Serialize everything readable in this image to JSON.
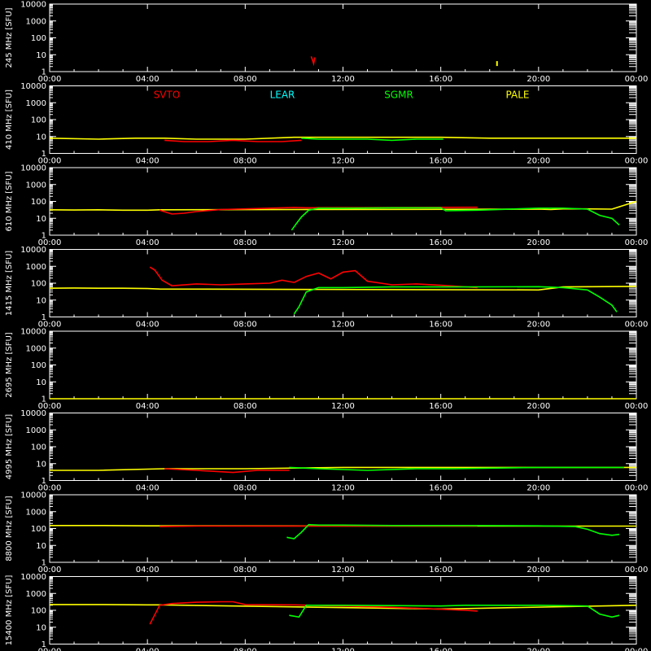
{
  "chart_data": {
    "type": "line",
    "title": "",
    "x_ticks": [
      "00:00",
      "04:00",
      "08:00",
      "12:00",
      "16:00",
      "20:00",
      "00:00"
    ],
    "y_ticks": [
      "1",
      "10",
      "100",
      "1000",
      "10000"
    ],
    "ylim": [
      1,
      10000
    ],
    "y_scale": "log",
    "stations": [
      {
        "name": "SVTO",
        "color": "#ff0000"
      },
      {
        "name": "LEAR",
        "color": "#00ffff"
      },
      {
        "name": "SGMR",
        "color": "#00ff00"
      },
      {
        "name": "PALE",
        "color": "#ffff00"
      }
    ],
    "panels": [
      {
        "ylabel": "245 MHz [SFU]",
        "series": [
          {
            "station": "SVTO",
            "points": [
              [
                10.7,
                8
              ],
              [
                10.75,
                5
              ],
              [
                10.8,
                3
              ],
              [
                10.85,
                7
              ]
            ]
          },
          {
            "station": "PALE",
            "points": [
              [
                18.3,
                3
              ]
            ]
          }
        ]
      },
      {
        "ylabel": "410 MHz [SFU]",
        "series": [
          {
            "station": "PALE",
            "points": [
              [
                0,
                8
              ],
              [
                2,
                7
              ],
              [
                3.5,
                8
              ],
              [
                4.7,
                8
              ],
              [
                6,
                7
              ],
              [
                8,
                7
              ],
              [
                10,
                9
              ],
              [
                12,
                9
              ],
              [
                14,
                9
              ],
              [
                16,
                9
              ],
              [
                18,
                8
              ],
              [
                20,
                8
              ],
              [
                22,
                8
              ],
              [
                24,
                8
              ]
            ]
          },
          {
            "station": "SVTO",
            "points": [
              [
                4.7,
                6
              ],
              [
                5.5,
                5
              ],
              [
                6.5,
                5
              ],
              [
                7.5,
                6
              ],
              [
                8.5,
                5
              ],
              [
                9.5,
                5
              ],
              [
                10.3,
                6
              ]
            ]
          },
          {
            "station": "SGMR",
            "points": [
              [
                10.3,
                8
              ],
              [
                11,
                7
              ],
              [
                12,
                7
              ],
              [
                13,
                7
              ],
              [
                14,
                6
              ],
              [
                15,
                7
              ],
              [
                16.1,
                7
              ]
            ]
          }
        ]
      },
      {
        "ylabel": "610 MHz [SFU]",
        "series": [
          {
            "station": "PALE",
            "points": [
              [
                0,
                32
              ],
              [
                1,
                31
              ],
              [
                2,
                32
              ],
              [
                3,
                30
              ],
              [
                4,
                30
              ],
              [
                4.5,
                32
              ],
              [
                20,
                35
              ],
              [
                20.5,
                33
              ],
              [
                21,
                36
              ],
              [
                22,
                36
              ],
              [
                23,
                35
              ],
              [
                24,
                100
              ]
            ]
          },
          {
            "station": "SVTO",
            "points": [
              [
                4.5,
                30
              ],
              [
                5,
                18
              ],
              [
                5.5,
                20
              ],
              [
                6,
                25
              ],
              [
                7,
                33
              ],
              [
                8,
                36
              ],
              [
                9,
                40
              ],
              [
                10,
                44
              ],
              [
                10.5,
                42
              ],
              [
                17.5,
                45
              ]
            ]
          },
          {
            "station": "SGMR",
            "points": [
              [
                9.9,
                2
              ],
              [
                10.1,
                5
              ],
              [
                10.3,
                12
              ],
              [
                10.6,
                30
              ],
              [
                11,
                40
              ],
              [
                12,
                40
              ],
              [
                14,
                42
              ],
              [
                16,
                42
              ],
              [
                16.2,
                28
              ],
              [
                17.5,
                30
              ],
              [
                20,
                40
              ],
              [
                21,
                40
              ],
              [
                22,
                35
              ],
              [
                22.5,
                15
              ],
              [
                23,
                10
              ],
              [
                23.3,
                4
              ]
            ]
          }
        ]
      },
      {
        "ylabel": "1415 MHz [SFU]",
        "series": [
          {
            "station": "PALE",
            "points": [
              [
                0,
                50
              ],
              [
                1,
                52
              ],
              [
                2,
                50
              ],
              [
                3,
                50
              ],
              [
                4,
                48
              ],
              [
                4.5,
                45
              ],
              [
                20,
                40
              ],
              [
                21,
                60
              ],
              [
                24,
                65
              ]
            ]
          },
          {
            "station": "SVTO",
            "points": [
              [
                4.1,
                900
              ],
              [
                4.3,
                600
              ],
              [
                4.6,
                150
              ],
              [
                5,
                70
              ],
              [
                6,
                90
              ],
              [
                7,
                80
              ],
              [
                8,
                90
              ],
              [
                9,
                100
              ],
              [
                9.5,
                150
              ],
              [
                10,
                110
              ],
              [
                10.5,
                250
              ],
              [
                11,
                400
              ],
              [
                11.5,
                180
              ],
              [
                12,
                450
              ],
              [
                12.5,
                550
              ],
              [
                13,
                130
              ],
              [
                14,
                80
              ],
              [
                15,
                90
              ],
              [
                16,
                75
              ],
              [
                17.5,
                55
              ]
            ]
          },
          {
            "station": "SGMR",
            "points": [
              [
                10,
                1.5
              ],
              [
                10.2,
                4
              ],
              [
                10.5,
                30
              ],
              [
                11,
                55
              ],
              [
                12,
                55
              ],
              [
                14,
                60
              ],
              [
                16,
                60
              ],
              [
                17,
                60
              ],
              [
                20,
                62
              ],
              [
                21,
                55
              ],
              [
                22,
                40
              ],
              [
                22.5,
                15
              ],
              [
                23,
                5
              ],
              [
                23.2,
                2
              ]
            ]
          }
        ]
      },
      {
        "ylabel": "2695 MHz [SFU]",
        "series": [
          {
            "station": "PALE",
            "points": [
              [
                0,
                1
              ],
              [
                24,
                1
              ]
            ]
          }
        ]
      },
      {
        "ylabel": "4995 MHz [SFU]",
        "series": [
          {
            "station": "PALE",
            "points": [
              [
                0,
                4
              ],
              [
                2,
                4
              ],
              [
                4.7,
                5
              ],
              [
                8,
                5
              ],
              [
                12,
                6
              ],
              [
                16,
                6
              ],
              [
                20,
                6
              ],
              [
                24,
                6
              ]
            ]
          },
          {
            "station": "SVTO",
            "points": [
              [
                4.7,
                5
              ],
              [
                6,
                4
              ],
              [
                7.5,
                3
              ],
              [
                8.5,
                4
              ],
              [
                9.8,
                4
              ]
            ]
          },
          {
            "station": "SGMR",
            "points": [
              [
                9.8,
                6
              ],
              [
                11,
                5
              ],
              [
                13,
                4
              ],
              [
                15,
                5
              ],
              [
                16.5,
                5
              ],
              [
                20,
                6
              ],
              [
                23.5,
                6
              ]
            ]
          }
        ]
      },
      {
        "ylabel": "8800 MHz [SFU]",
        "series": [
          {
            "station": "PALE",
            "points": [
              [
                0,
                150
              ],
              [
                2,
                150
              ],
              [
                4,
                145
              ],
              [
                4.7,
                145
              ],
              [
                20,
                140
              ],
              [
                21,
                140
              ],
              [
                24,
                140
              ]
            ]
          },
          {
            "station": "SVTO",
            "points": [
              [
                4.5,
                130
              ],
              [
                6,
                140
              ],
              [
                8,
                140
              ],
              [
                9,
                140
              ],
              [
                10,
                140
              ],
              [
                17.5,
                145
              ]
            ]
          },
          {
            "station": "SGMR",
            "points": [
              [
                9.7,
                30
              ],
              [
                10,
                25
              ],
              [
                10.3,
                60
              ],
              [
                10.6,
                170
              ],
              [
                11,
                160
              ],
              [
                12,
                160
              ],
              [
                14,
                150
              ],
              [
                16,
                150
              ],
              [
                17,
                150
              ],
              [
                20,
                145
              ],
              [
                21.5,
                130
              ],
              [
                22,
                90
              ],
              [
                22.5,
                50
              ],
              [
                23,
                40
              ],
              [
                23.3,
                45
              ]
            ]
          }
        ]
      },
      {
        "ylabel": "15400 MHz [SFU]",
        "series": [
          {
            "station": "PALE",
            "points": [
              [
                0,
                220
              ],
              [
                2,
                220
              ],
              [
                4,
                210
              ],
              [
                4.5,
                210
              ],
              [
                16,
                120
              ],
              [
                24,
                200
              ]
            ]
          },
          {
            "station": "SVTO",
            "points": [
              [
                4.1,
                15
              ],
              [
                4.5,
                200
              ],
              [
                5,
                250
              ],
              [
                6,
                300
              ],
              [
                7,
                320
              ],
              [
                7.5,
                320
              ],
              [
                8,
                220
              ],
              [
                10,
                210
              ],
              [
                12,
                180
              ],
              [
                14,
                150
              ],
              [
                16,
                115
              ],
              [
                17,
                100
              ],
              [
                17.5,
                90
              ]
            ]
          },
          {
            "station": "SGMR",
            "points": [
              [
                9.8,
                50
              ],
              [
                10.2,
                40
              ],
              [
                10.5,
                200
              ],
              [
                11,
                200
              ],
              [
                12,
                200
              ],
              [
                14,
                190
              ],
              [
                16,
                180
              ],
              [
                17,
                200
              ],
              [
                20,
                200
              ],
              [
                22,
                180
              ],
              [
                22.5,
                60
              ],
              [
                23,
                40
              ],
              [
                23.3,
                50
              ]
            ]
          }
        ]
      }
    ]
  }
}
